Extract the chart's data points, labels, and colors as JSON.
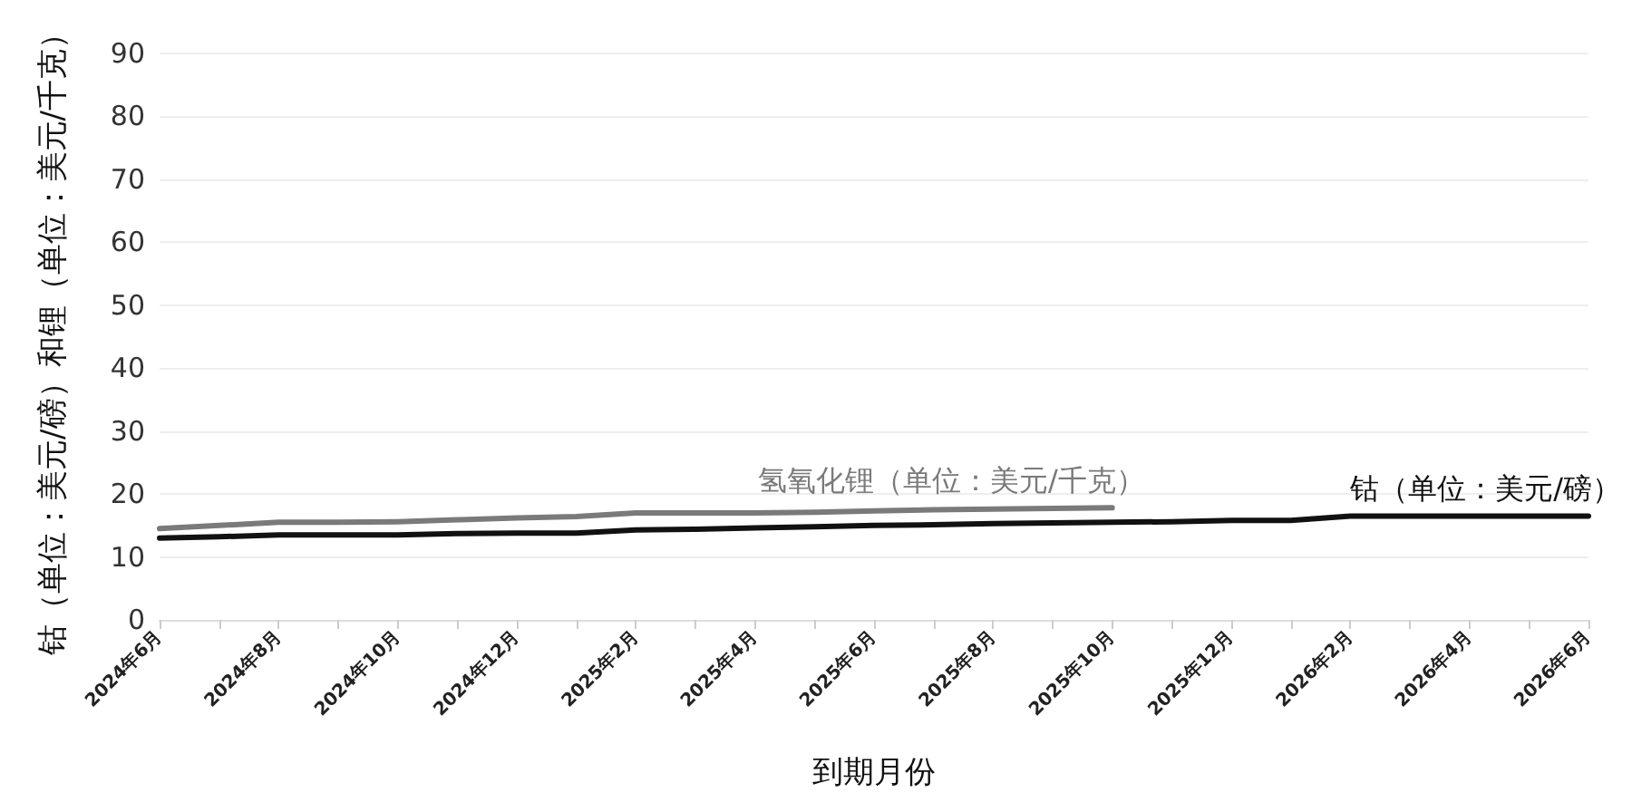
{
  "chart_data": {
    "type": "line",
    "xlabel": "到期月份",
    "ylabel": "钴（单位：美元/磅）和锂（单位：美元/千克）",
    "categories": [
      "2024年6月",
      null,
      "2024年8月",
      null,
      "2024年10月",
      null,
      "2024年12月",
      null,
      "2025年2月",
      null,
      "2025年4月",
      null,
      "2025年6月",
      null,
      "2025年8月",
      null,
      "2025年10月",
      null,
      "2025年12月",
      null,
      "2026年2月",
      null,
      "2026年4月",
      null,
      "2026年6月"
    ],
    "series": [
      {
        "name": "氢氧化锂（单位：美元/千克）",
        "color": "#7a7a7a",
        "values": [
          14.5,
          15.0,
          15.5,
          15.5,
          15.6,
          15.9,
          16.2,
          16.4,
          17.0,
          17.0,
          17.0,
          17.1,
          17.3,
          17.5,
          17.6,
          17.7,
          17.8,
          null,
          null,
          null,
          null,
          null,
          null,
          null,
          null
        ]
      },
      {
        "name": "钴（单位：美元/磅）",
        "color": "#111111",
        "values": [
          13.0,
          13.2,
          13.5,
          13.5,
          13.5,
          13.7,
          13.8,
          13.8,
          14.3,
          14.4,
          14.6,
          14.8,
          15.0,
          15.1,
          15.3,
          15.4,
          15.5,
          15.6,
          15.8,
          15.8,
          16.5,
          16.5,
          16.5,
          16.5,
          16.5
        ]
      }
    ],
    "ylim": [
      0,
      90
    ],
    "yticks": [
      0,
      10,
      20,
      30,
      40,
      50,
      60,
      70,
      80,
      90
    ],
    "grid": "y",
    "legend": false,
    "marker": "none",
    "line_style": "solid"
  }
}
